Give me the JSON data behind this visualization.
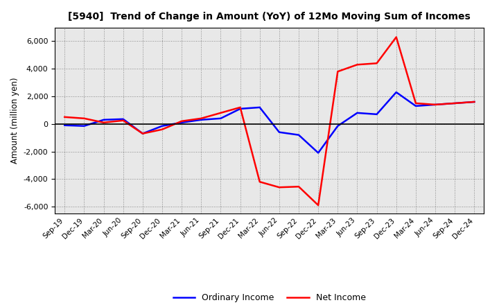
{
  "title": "[5940]  Trend of Change in Amount (YoY) of 12Mo Moving Sum of Incomes",
  "ylabel": "Amount (million yen)",
  "x_labels": [
    "Sep-19",
    "Dec-19",
    "Mar-20",
    "Jun-20",
    "Sep-20",
    "Dec-20",
    "Mar-21",
    "Jun-21",
    "Sep-21",
    "Dec-21",
    "Mar-22",
    "Jun-22",
    "Sep-22",
    "Dec-22",
    "Mar-23",
    "Jun-23",
    "Sep-23",
    "Dec-23",
    "Mar-24",
    "Jun-24",
    "Sep-24",
    "Dec-24"
  ],
  "ordinary_income": [
    -100,
    -150,
    300,
    350,
    -700,
    -150,
    100,
    300,
    400,
    1100,
    1200,
    -600,
    -800,
    -2100,
    -150,
    800,
    700,
    2300,
    1300,
    1400,
    1500,
    1600
  ],
  "net_income": [
    500,
    400,
    100,
    250,
    -700,
    -400,
    200,
    400,
    800,
    1200,
    -4200,
    -4600,
    -4550,
    -5900,
    3800,
    4300,
    4400,
    6300,
    1500,
    1400,
    1500,
    1600
  ],
  "ordinary_income_color": "#0000ff",
  "net_income_color": "#ff0000",
  "ylim": [
    -6500,
    7000
  ],
  "yticks": [
    -6000,
    -4000,
    -2000,
    0,
    2000,
    4000,
    6000
  ],
  "background_color": "#ffffff",
  "plot_bg_color": "#e8e8e8",
  "grid_color": "#888888",
  "legend_labels": [
    "Ordinary Income",
    "Net Income"
  ],
  "line_width": 1.8
}
